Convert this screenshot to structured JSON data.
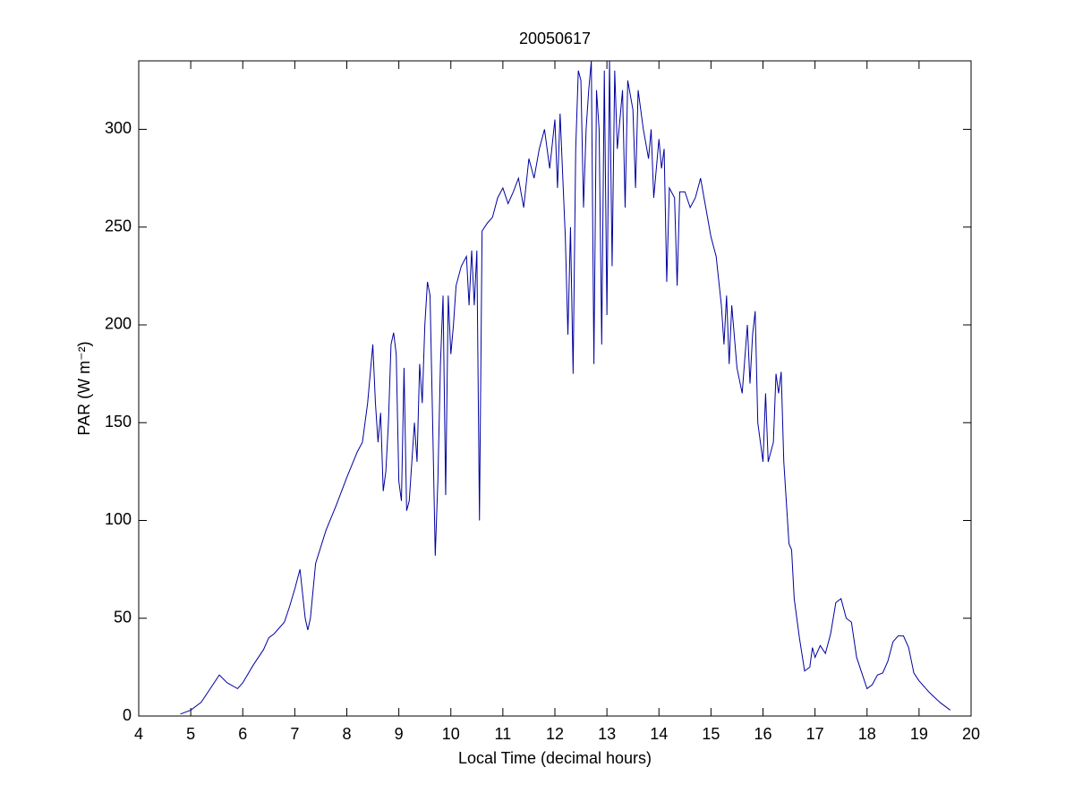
{
  "chart_data": {
    "type": "line",
    "title": "20050617",
    "xlabel": "Local Time (decimal hours)",
    "ylabel": "PAR (W m⁻²)",
    "x": [
      4.8,
      5.0,
      5.2,
      5.4,
      5.55,
      5.7,
      5.9,
      6.0,
      6.2,
      6.4,
      6.5,
      6.6,
      6.8,
      6.9,
      7.0,
      7.1,
      7.2,
      7.25,
      7.3,
      7.4,
      7.6,
      7.8,
      8.0,
      8.2,
      8.3,
      8.4,
      8.5,
      8.55,
      8.6,
      8.65,
      8.7,
      8.75,
      8.8,
      8.85,
      8.9,
      8.95,
      9.0,
      9.05,
      9.1,
      9.15,
      9.2,
      9.3,
      9.35,
      9.4,
      9.45,
      9.5,
      9.55,
      9.6,
      9.65,
      9.7,
      9.75,
      9.8,
      9.85,
      9.9,
      9.95,
      10.0,
      10.05,
      10.1,
      10.2,
      10.3,
      10.35,
      10.4,
      10.45,
      10.5,
      10.55,
      10.6,
      10.7,
      10.8,
      10.9,
      11.0,
      11.1,
      11.2,
      11.3,
      11.4,
      11.5,
      11.6,
      11.7,
      11.8,
      11.9,
      12.0,
      12.05,
      12.1,
      12.2,
      12.25,
      12.3,
      12.35,
      12.4,
      12.45,
      12.5,
      12.55,
      12.6,
      12.65,
      12.7,
      12.75,
      12.8,
      12.85,
      12.9,
      12.95,
      13.0,
      13.05,
      13.1,
      13.15,
      13.2,
      13.3,
      13.35,
      13.4,
      13.5,
      13.55,
      13.6,
      13.7,
      13.8,
      13.85,
      13.9,
      14.0,
      14.05,
      14.1,
      14.15,
      14.2,
      14.3,
      14.35,
      14.4,
      14.5,
      14.6,
      14.7,
      14.8,
      14.9,
      15.0,
      15.1,
      15.2,
      15.25,
      15.3,
      15.35,
      15.4,
      15.5,
      15.6,
      15.7,
      15.75,
      15.8,
      15.85,
      15.9,
      15.95,
      16.0,
      16.05,
      16.1,
      16.2,
      16.25,
      16.3,
      16.35,
      16.4,
      16.5,
      16.55,
      16.6,
      16.7,
      16.8,
      16.9,
      16.95,
      17.0,
      17.1,
      17.2,
      17.3,
      17.4,
      17.5,
      17.6,
      17.7,
      17.8,
      17.9,
      18.0,
      18.1,
      18.2,
      18.3,
      18.4,
      18.5,
      18.6,
      18.7,
      18.8,
      18.9,
      19.0,
      19.2,
      19.4,
      19.6
    ],
    "series": [
      {
        "name": "PAR",
        "color": "#0000a0",
        "values": [
          1,
          3,
          7,
          15,
          21,
          17,
          14,
          17,
          26,
          34,
          40,
          42,
          48,
          56,
          65,
          75,
          50,
          44,
          50,
          78,
          95,
          108,
          122,
          135,
          140,
          160,
          190,
          160,
          140,
          155,
          115,
          125,
          150,
          190,
          196,
          185,
          120,
          110,
          178,
          105,
          110,
          150,
          130,
          180,
          160,
          200,
          222,
          215,
          150,
          82,
          120,
          180,
          215,
          113,
          215,
          185,
          200,
          220,
          230,
          235,
          210,
          238,
          210,
          238,
          100,
          248,
          252,
          255,
          265,
          270,
          262,
          268,
          275,
          260,
          285,
          275,
          290,
          300,
          280,
          305,
          270,
          308,
          245,
          195,
          250,
          175,
          290,
          330,
          325,
          260,
          300,
          320,
          335,
          180,
          320,
          300,
          190,
          330,
          205,
          335,
          230,
          330,
          290,
          320,
          260,
          325,
          310,
          270,
          320,
          300,
          285,
          300,
          265,
          295,
          280,
          290,
          222,
          270,
          265,
          220,
          268,
          268,
          260,
          265,
          275,
          260,
          245,
          235,
          210,
          190,
          215,
          180,
          210,
          178,
          165,
          200,
          170,
          195,
          207,
          150,
          140,
          130,
          165,
          130,
          140,
          175,
          165,
          176,
          130,
          88,
          85,
          60,
          40,
          23,
          25,
          35,
          30,
          36,
          32,
          42,
          58,
          60,
          50,
          48,
          30,
          22,
          14,
          16,
          21,
          22,
          28,
          38,
          41,
          41,
          35,
          22,
          18,
          12,
          7,
          3
        ]
      }
    ],
    "xlim": [
      4,
      20
    ],
    "xticks": [
      4,
      5,
      6,
      7,
      8,
      9,
      10,
      11,
      12,
      13,
      14,
      15,
      16,
      17,
      18,
      19,
      20
    ],
    "ylim": [
      0,
      335
    ],
    "yticks": [
      0,
      50,
      100,
      150,
      200,
      250,
      300
    ],
    "grid": false
  }
}
